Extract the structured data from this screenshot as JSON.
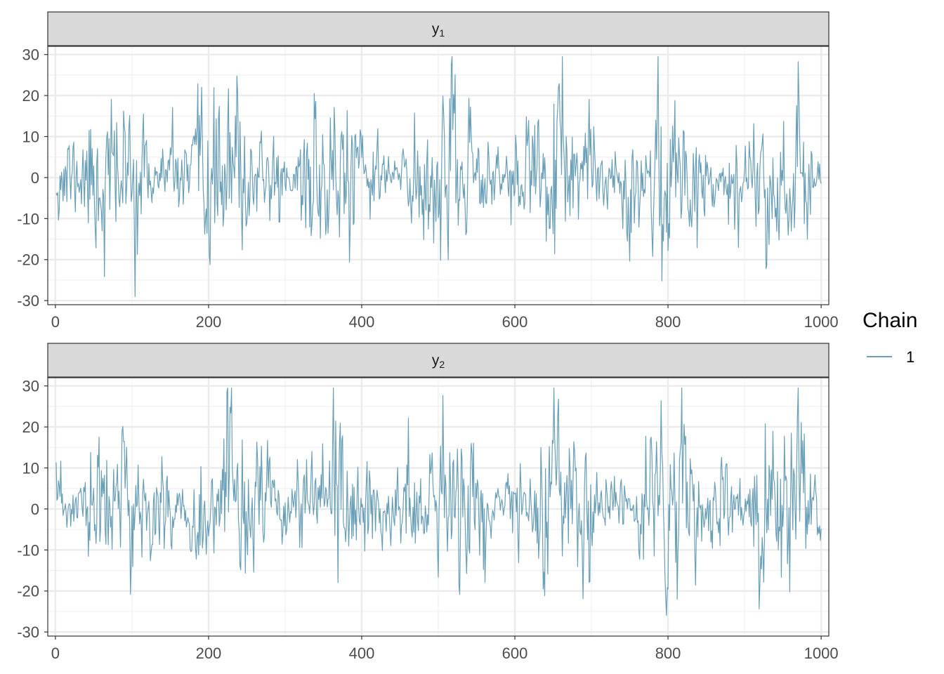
{
  "chart_data": {
    "type": "line",
    "facets": [
      {
        "label_base": "y",
        "label_sub": "1",
        "x_ticks": [
          "0",
          "200",
          "400",
          "600",
          "800",
          "1000"
        ],
        "y_ticks": [
          "30",
          "20",
          "10",
          "0",
          "-10",
          "-20",
          "-30"
        ],
        "xlim": [
          -10,
          1010
        ],
        "ylim": [
          -31,
          32
        ],
        "n_draws": 1000,
        "seed": 11,
        "series": [
          {
            "name": "1",
            "color": "#6a9fb8"
          }
        ]
      },
      {
        "label_base": "y",
        "label_sub": "2",
        "x_ticks": [
          "0",
          "200",
          "400",
          "600",
          "800",
          "1000"
        ],
        "y_ticks": [
          "30",
          "20",
          "10",
          "0",
          "-10",
          "-20",
          "-30"
        ],
        "xlim": [
          -10,
          1010
        ],
        "ylim": [
          -31,
          32
        ],
        "n_draws": 1000,
        "seed": 23,
        "series": [
          {
            "name": "1",
            "color": "#6a9fb8"
          }
        ]
      }
    ],
    "legend": {
      "title": "Chain",
      "items": [
        {
          "label": "1",
          "color": "#6a9fb8"
        }
      ],
      "position": "right"
    },
    "grid": true,
    "facet_strip_color": "#d9d9d9",
    "panel_border_color": "#333333"
  }
}
